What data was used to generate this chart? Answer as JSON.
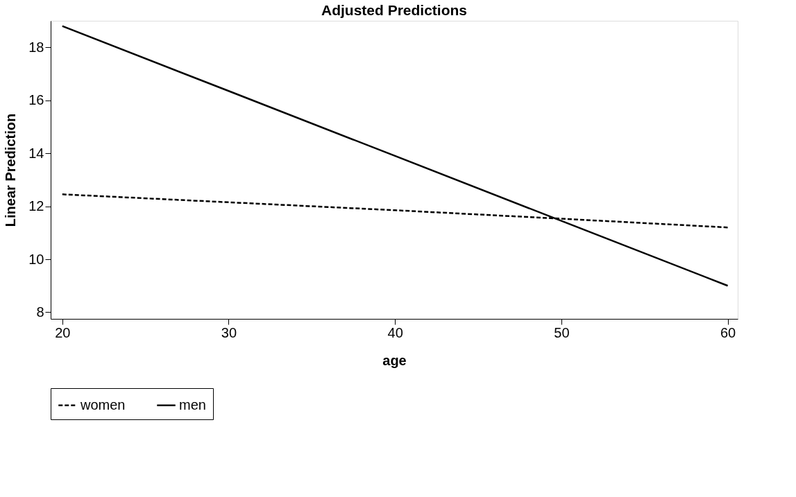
{
  "chart_data": {
    "type": "line",
    "title": "Adjusted Predictions",
    "xlabel": "age",
    "ylabel": "Linear Prediction",
    "x": [
      20,
      30,
      40,
      50,
      60
    ],
    "series": [
      {
        "name": "women",
        "color": "#000000",
        "line_style": "dashed",
        "values": [
          12.45,
          12.15,
          11.85,
          11.53,
          11.2
        ]
      },
      {
        "name": "men",
        "color": "#000000",
        "line_style": "solid",
        "values": [
          18.8,
          16.35,
          13.9,
          11.45,
          9.0
        ]
      }
    ],
    "xlim": [
      19.3,
      60.6
    ],
    "xticks": [
      20,
      30,
      40,
      50,
      60
    ],
    "ylim": [
      7.75,
      19.0
    ],
    "yticks": [
      8,
      10,
      12,
      14,
      16,
      18
    ],
    "grid": false,
    "legend": "bottom",
    "marker": "none"
  }
}
